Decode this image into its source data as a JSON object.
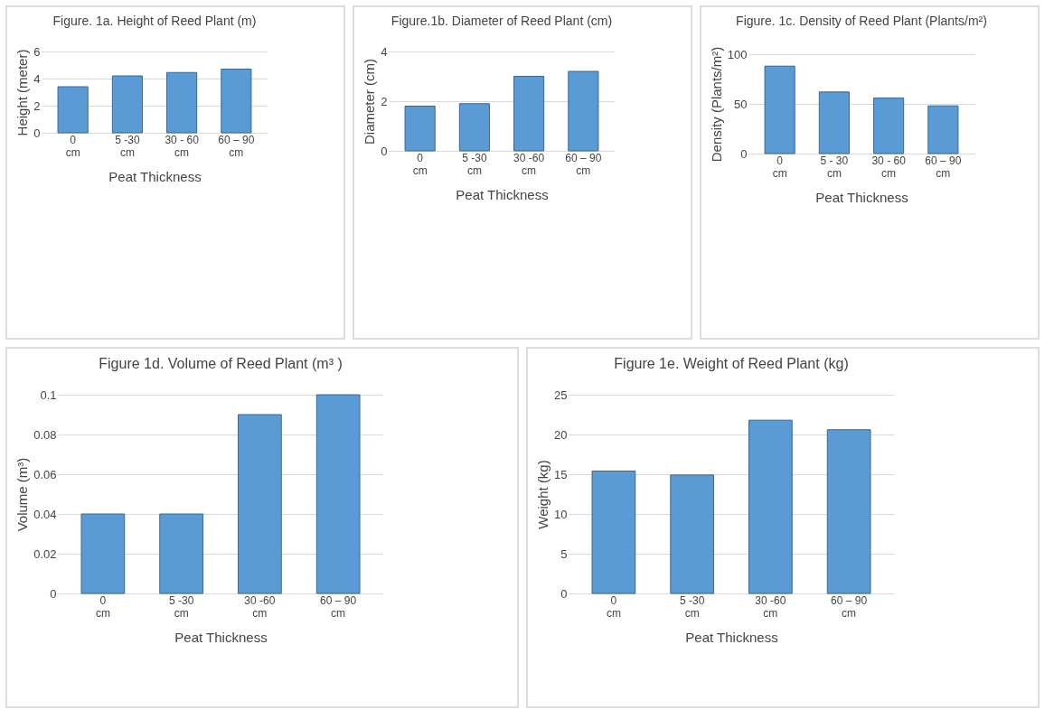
{
  "chart_data": [
    {
      "type": "bar",
      "title": "Figure. 1a. Height of Reed Plant (m)",
      "xlabel": "Peat Thickness",
      "ylabel": "Height (meter)",
      "categories": [
        "0 cm",
        "5 -30 cm",
        "30 - 60 cm",
        "60 – 90 cm"
      ],
      "values": [
        3.4,
        4.2,
        4.45,
        4.7
      ],
      "color": "#5b9bd5",
      "ylim": [
        0,
        6
      ],
      "yticks": [
        0,
        2,
        4,
        6
      ],
      "grid": "y"
    },
    {
      "type": "bar",
      "title": "Figure.1b. Diameter of Reed Plant (cm)",
      "xlabel": "Peat Thickness",
      "ylabel": "Diameter (cm)",
      "categories": [
        "0 cm",
        "5 -30 cm",
        "30 -60 cm",
        "60 – 90 cm"
      ],
      "values": [
        1.8,
        1.9,
        3.0,
        3.2
      ],
      "color": "#5b9bd5",
      "ylim": [
        0,
        4
      ],
      "yticks": [
        0,
        2,
        4
      ],
      "grid": "y"
    },
    {
      "type": "bar",
      "title": "Figure. 1c. Density of Reed Plant  (Plants/m²)",
      "xlabel": "Peat Thickness",
      "ylabel": "Density (Plants/m²)",
      "categories": [
        "0 cm",
        "5 - 30 cm",
        "30 - 60 cm",
        "60 – 90 cm"
      ],
      "values": [
        88,
        62,
        56,
        48
      ],
      "color": "#5b9bd5",
      "ylim": [
        0,
        100
      ],
      "yticks": [
        0,
        50,
        100
      ],
      "grid": "y"
    },
    {
      "type": "bar",
      "title": "Figure 1d. Volume of Reed Plant (m³ )",
      "xlabel": "Peat Thickness",
      "ylabel": "Volume (m³)",
      "categories": [
        "0 cm",
        "5 -30 cm",
        "30 -60 cm",
        "60 – 90 cm"
      ],
      "values": [
        0.04,
        0.04,
        0.09,
        0.1
      ],
      "color": "#5b9bd5",
      "ylim": [
        0,
        0.1
      ],
      "yticks": [
        0,
        0.02,
        0.04,
        0.06,
        0.08,
        0.1
      ],
      "grid": "y"
    },
    {
      "type": "bar",
      "title": "Figure 1e. Weight of Reed Plant (kg)",
      "xlabel": "Peat Thickness",
      "ylabel": "Weight (kg)",
      "categories": [
        "0 cm",
        "5 -30 cm",
        "30 -60 cm",
        "60 – 90 cm"
      ],
      "values": [
        15.4,
        14.9,
        21.8,
        20.6
      ],
      "color": "#5b9bd5",
      "ylim": [
        0,
        25
      ],
      "yticks": [
        0,
        5,
        10,
        15,
        20,
        25
      ],
      "grid": "y"
    }
  ]
}
